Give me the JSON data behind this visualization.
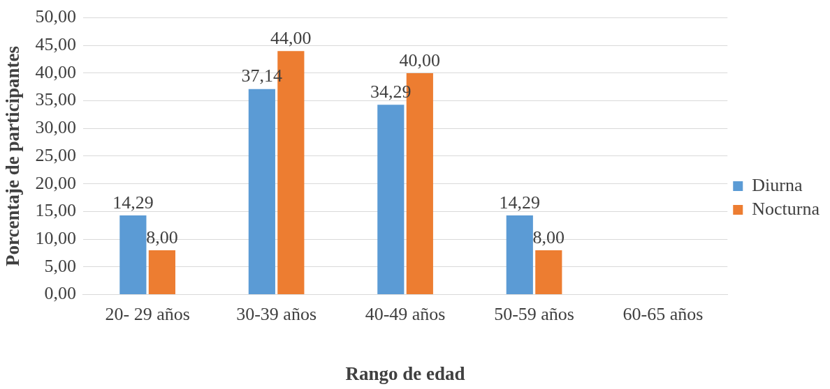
{
  "chart_data": {
    "type": "bar",
    "xlabel": "Rango de edad",
    "ylabel": "Porcentaje de participantes",
    "categories": [
      "20- 29 años",
      "30-39 años",
      "40-49 años",
      "50-59 años",
      "60-65 años"
    ],
    "series": [
      {
        "name": "Diurna",
        "color": "#5b9bd5",
        "values": [
          14.29,
          37.14,
          34.29,
          14.29,
          null
        ],
        "value_labels": [
          "14,29",
          "37,14",
          "34,29",
          "14,29",
          null
        ]
      },
      {
        "name": "Nocturna",
        "color": "#ed7d31",
        "values": [
          8,
          44,
          40,
          8,
          null
        ],
        "value_labels": [
          "8,00",
          "44,00",
          "40,00",
          "8,00",
          null
        ]
      }
    ],
    "ylim": [
      0,
      50
    ],
    "yticks": [
      {
        "value": 0,
        "label": "0,00"
      },
      {
        "value": 5,
        "label": "5,00"
      },
      {
        "value": 10,
        "label": "10,00"
      },
      {
        "value": 15,
        "label": "15,00"
      },
      {
        "value": 20,
        "label": "20,00"
      },
      {
        "value": 25,
        "label": "25,00"
      },
      {
        "value": 30,
        "label": "30,00"
      },
      {
        "value": 35,
        "label": "35,00"
      },
      {
        "value": 40,
        "label": "40,00"
      },
      {
        "value": 45,
        "label": "45,00"
      },
      {
        "value": 50,
        "label": "50,00"
      }
    ],
    "grid": "y",
    "legend": "right"
  }
}
